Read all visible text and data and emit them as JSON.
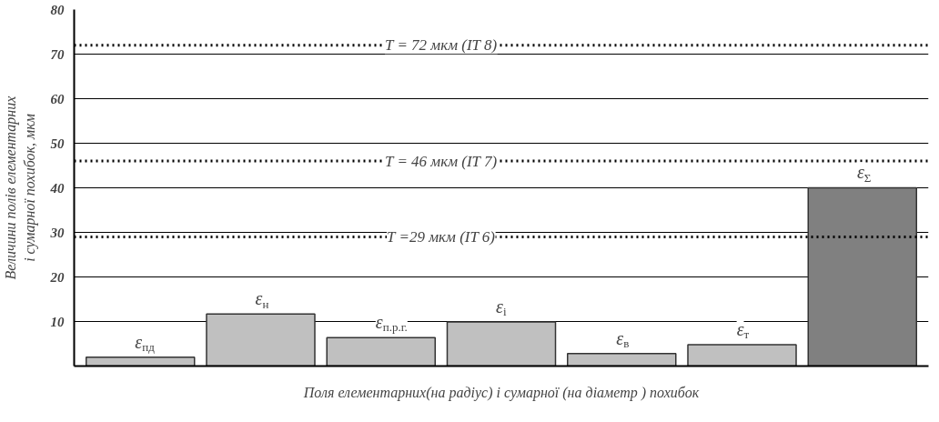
{
  "chart_data": {
    "type": "bar",
    "categories": [
      "ε$_{пд}$",
      "ε$_{н}$",
      "ε$_{п.р.г.}$",
      "ε$_{і}$",
      "ε$_{в}$",
      "ε$_{т}$",
      "ε$_{Σ}$"
    ],
    "values": [
      2,
      11.7,
      6.4,
      9.9,
      2.8,
      4.8,
      40
    ],
    "colors": [
      "#c0c0c0",
      "#c0c0c0",
      "#c0c0c0",
      "#c0c0c0",
      "#c0c0c0",
      "#c0c0c0",
      "#808080"
    ],
    "ylim": [
      0,
      80
    ],
    "yticks": [
      10,
      20,
      30,
      40,
      50,
      60,
      70,
      80
    ],
    "grid": "y",
    "xlabel": "Поля елементарних(на радіус) і сумарної (на діаметр ) похибок",
    "ylabel": "Величини полів елементарних\nі сумарної похибок, мкм",
    "ref_lines": [
      {
        "axis": "y",
        "value": 72,
        "label": "T = 72 мкм (IT 8)",
        "line_style": "dotted"
      },
      {
        "axis": "y",
        "value": 46,
        "label": "T = 46 мкм (IT 7)",
        "line_style": "dotted"
      },
      {
        "axis": "y",
        "value": 29,
        "label": "T =29 мкм (IT 6)",
        "line_style": "dotted"
      }
    ]
  }
}
